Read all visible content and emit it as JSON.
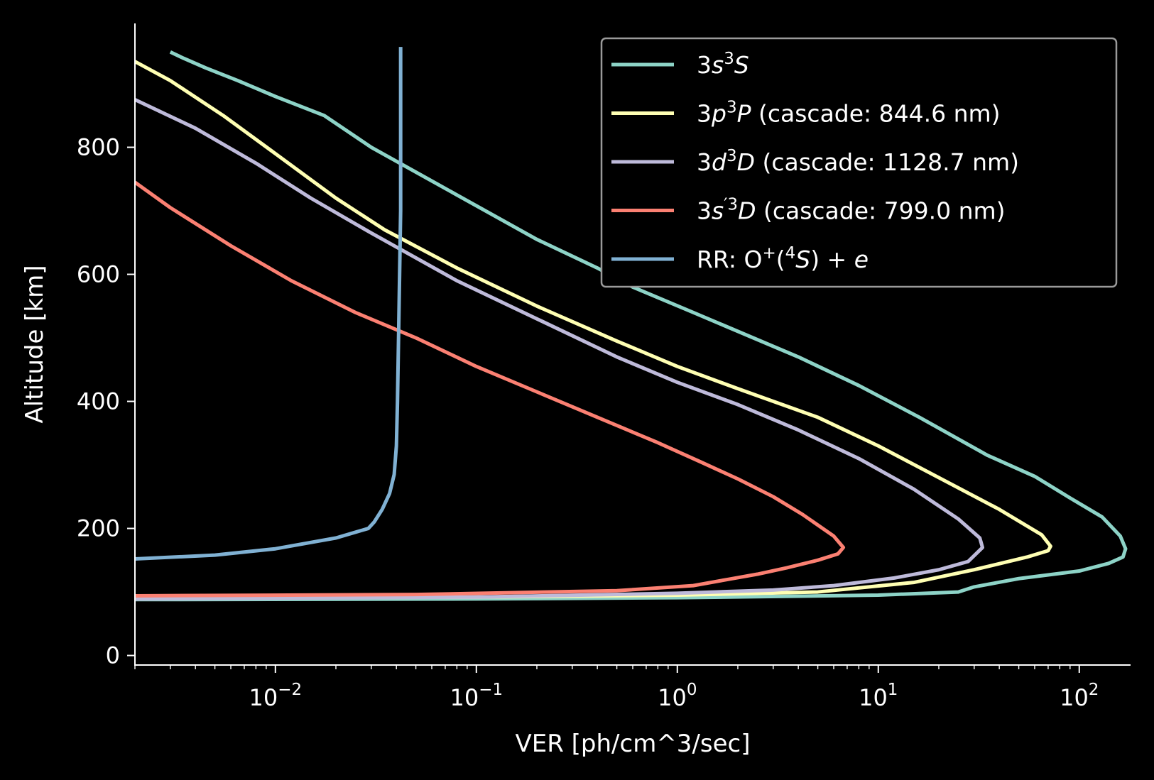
{
  "chart_data": {
    "type": "line",
    "title": "",
    "xlabel": "VER [ph/cm^3/sec]",
    "ylabel": "Altitude [km]",
    "xscale": "log",
    "xlim": [
      0.002,
      180
    ],
    "ylim": [
      -15,
      995
    ],
    "grid": false,
    "legend": "top-right",
    "background": "#000000",
    "x_ticks": [
      {
        "value": 0.01,
        "base": "10",
        "exp": "−2"
      },
      {
        "value": 0.1,
        "base": "10",
        "exp": "−1"
      },
      {
        "value": 1,
        "base": "10",
        "exp": "0"
      },
      {
        "value": 10,
        "base": "10",
        "exp": "1"
      },
      {
        "value": 100,
        "base": "10",
        "exp": "2"
      }
    ],
    "y_ticks": [
      {
        "value": 0,
        "label": "0"
      },
      {
        "value": 200,
        "label": "200"
      },
      {
        "value": 400,
        "label": "400"
      },
      {
        "value": 600,
        "label": "600"
      },
      {
        "value": 800,
        "label": "800"
      }
    ],
    "series": [
      {
        "name": "3s³S",
        "legend_parts": [
          {
            "t": "3",
            "s": ""
          },
          {
            "t": "s",
            "s": "it"
          },
          {
            "t": "3",
            "s": "sup"
          },
          {
            "t": "S",
            "s": "it"
          }
        ],
        "color": "#8dd3c7",
        "x": [
          0.002,
          0.1,
          1,
          10,
          25,
          30,
          50,
          100,
          140,
          165,
          170,
          160,
          130,
          90,
          60,
          35,
          16,
          8,
          4,
          1.2,
          0.6,
          0.4,
          0.2,
          0.08,
          0.03,
          0.0175,
          0.01,
          0.0065,
          0.0045,
          0.0035,
          0.003
        ],
        "y": [
          88,
          89,
          91,
          95,
          100,
          108,
          121,
          133,
          145,
          155,
          168,
          188,
          218,
          248,
          282,
          315,
          375,
          425,
          470,
          540,
          580,
          610,
          655,
          725,
          800,
          850,
          880,
          905,
          925,
          940,
          950
        ]
      },
      {
        "name": "3p³P (cascade: 844.6 nm)",
        "legend_parts": [
          {
            "t": "3",
            "s": ""
          },
          {
            "t": "p",
            "s": "it"
          },
          {
            "t": "3",
            "s": "sup"
          },
          {
            "t": "P",
            "s": "it"
          },
          {
            "t": " (cascade: 844.6 nm)",
            "s": ""
          }
        ],
        "color": "#ffffb3",
        "x": [
          0.002,
          0.1,
          1,
          5,
          15,
          30,
          55,
          70,
          72,
          65,
          40,
          20,
          10,
          5,
          2,
          1,
          0.5,
          0.2,
          0.08,
          0.035,
          0.02,
          0.01,
          0.0055,
          0.003,
          0.002
        ],
        "y": [
          90,
          92,
          95,
          100,
          115,
          135,
          155,
          165,
          172,
          190,
          230,
          280,
          330,
          375,
          420,
          455,
          495,
          550,
          610,
          670,
          720,
          790,
          850,
          905,
          935
        ]
      },
      {
        "name": "3d³D (cascade: 1128.7 nm)",
        "legend_parts": [
          {
            "t": "3",
            "s": ""
          },
          {
            "t": "d",
            "s": "it"
          },
          {
            "t": "3",
            "s": "sup"
          },
          {
            "t": "D",
            "s": "it"
          },
          {
            "t": " (cascade: 1128.7 nm)",
            "s": ""
          }
        ],
        "color": "#bebada",
        "x": [
          0.002,
          0.1,
          1,
          3,
          6,
          12,
          20,
          28,
          33,
          32,
          25,
          15,
          8,
          4,
          2,
          1,
          0.5,
          0.2,
          0.08,
          0.03,
          0.015,
          0.008,
          0.004,
          0.002
        ],
        "y": [
          89,
          92,
          98,
          103,
          110,
          122,
          135,
          148,
          170,
          185,
          215,
          262,
          310,
          355,
          395,
          430,
          470,
          530,
          590,
          665,
          720,
          775,
          830,
          875
        ]
      },
      {
        "name": "3s′³D (cascade: 799.0 nm)",
        "legend_parts": [
          {
            "t": "3",
            "s": ""
          },
          {
            "t": "s",
            "s": "it"
          },
          {
            "t": "′3",
            "s": "sup"
          },
          {
            "t": "D",
            "s": "it"
          },
          {
            "t": " (cascade: 799.0 nm)",
            "s": ""
          }
        ],
        "color": "#fb8072",
        "x": [
          0.002,
          0.05,
          0.5,
          1.2,
          1.8,
          2.5,
          3.5,
          5,
          6.3,
          6.7,
          6,
          4.2,
          3,
          2,
          1.3,
          0.8,
          0.4,
          0.2,
          0.1,
          0.05,
          0.025,
          0.012,
          0.006,
          0.003,
          0.002
        ],
        "y": [
          94,
          96,
          102,
          110,
          120,
          128,
          138,
          150,
          160,
          170,
          188,
          222,
          250,
          278,
          305,
          335,
          375,
          415,
          455,
          500,
          540,
          590,
          645,
          705,
          745
        ]
      },
      {
        "name": "RR: O⁺(⁴S) + e",
        "legend_parts": [
          {
            "t": "RR: O",
            "s": ""
          },
          {
            "t": "+",
            "s": "sup"
          },
          {
            "t": "(",
            "s": ""
          },
          {
            "t": "4",
            "s": "sup"
          },
          {
            "t": "S",
            "s": "it"
          },
          {
            "t": ") + ",
            "s": ""
          },
          {
            "t": "e",
            "s": "it"
          }
        ],
        "color": "#80b1d3",
        "x": [
          0.002,
          0.005,
          0.01,
          0.02,
          0.029,
          0.031,
          0.034,
          0.037,
          0.039,
          0.04,
          0.0405,
          0.041,
          0.0415,
          0.042,
          0.042
        ],
        "y": [
          152,
          158,
          168,
          185,
          200,
          210,
          230,
          255,
          285,
          330,
          400,
          500,
          600,
          700,
          958
        ]
      }
    ]
  }
}
